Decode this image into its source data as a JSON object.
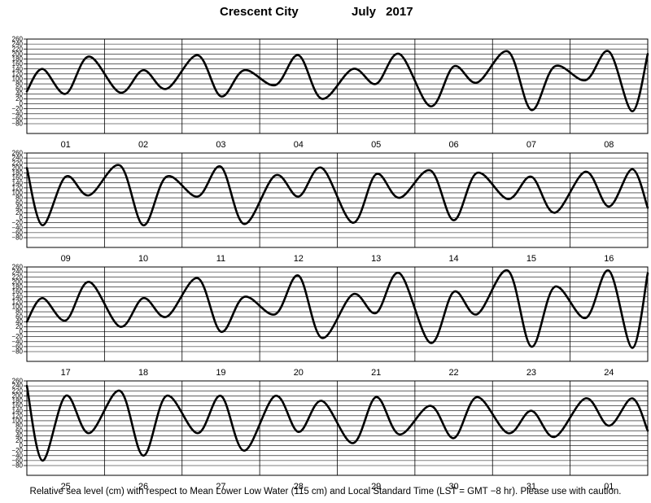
{
  "header": {
    "station": "Crescent City",
    "period": "July 2017"
  },
  "footer": {
    "note": "Relative sea level (cm) with respect to Mean Lower Low Water (115 cm) and Local Standard Time (LST = GMT −8 hr). Please use with caution."
  },
  "chart_data": {
    "type": "line",
    "title": "Crescent City July 2017",
    "ylabel": "Relative sea level (cm)",
    "ylim": [
      -80,
      260
    ],
    "yticks": [
      -80,
      -60,
      -40,
      -20,
      0,
      20,
      40,
      60,
      80,
      100,
      120,
      140,
      160,
      180,
      200,
      220,
      240,
      260
    ],
    "grid": true,
    "line_color": "#000000",
    "panels": [
      {
        "days": [
          "01",
          "02",
          "03",
          "04",
          "05",
          "06",
          "07",
          "08"
        ],
        "x": [
          0,
          0.2,
          0.5,
          0.8,
          1.2,
          1.5,
          1.8,
          2.2,
          2.5,
          2.8,
          3.2,
          3.5,
          3.8,
          4.2,
          4.5,
          4.8,
          5.2,
          5.5,
          5.8,
          6.2,
          6.5,
          6.8,
          7.2,
          7.5,
          7.8,
          8.0
        ],
        "y": [
          50,
          140,
          40,
          190,
          45,
          135,
          60,
          195,
          30,
          135,
          75,
          195,
          20,
          140,
          80,
          200,
          -10,
          150,
          85,
          210,
          -25,
          150,
          95,
          210,
          -30,
          200
        ]
      },
      {
        "days": [
          "09",
          "10",
          "11",
          "12",
          "13",
          "14",
          "15",
          "16"
        ],
        "x": [
          0,
          0.2,
          0.5,
          0.8,
          1.2,
          1.5,
          1.8,
          2.2,
          2.5,
          2.8,
          3.2,
          3.5,
          3.8,
          4.2,
          4.5,
          4.8,
          5.2,
          5.5,
          5.8,
          6.2,
          6.5,
          6.8,
          7.2,
          7.5,
          7.8,
          8.0
        ],
        "y": [
          200,
          -30,
          165,
          90,
          210,
          -30,
          165,
          85,
          205,
          -25,
          170,
          85,
          200,
          -20,
          175,
          80,
          190,
          -10,
          180,
          75,
          165,
          20,
          185,
          45,
          195,
          40
        ]
      },
      {
        "days": [
          "17",
          "18",
          "19",
          "20",
          "21",
          "22",
          "23",
          "24"
        ],
        "x": [
          0,
          0.2,
          0.5,
          0.8,
          1.2,
          1.5,
          1.8,
          2.2,
          2.5,
          2.8,
          3.2,
          3.5,
          3.8,
          4.2,
          4.5,
          4.8,
          5.2,
          5.5,
          5.8,
          6.2,
          6.5,
          6.8,
          7.2,
          7.5,
          7.8,
          8.0
        ],
        "y": [
          40,
          135,
          45,
          200,
          20,
          135,
          60,
          215,
          0,
          140,
          70,
          225,
          -25,
          150,
          75,
          235,
          -45,
          160,
          70,
          245,
          -60,
          180,
          55,
          245,
          -65,
          235
        ]
      },
      {
        "days": [
          "25",
          "26",
          "27",
          "28",
          "29",
          "30",
          "31",
          "01"
        ],
        "x": [
          0,
          0.2,
          0.5,
          0.8,
          1.2,
          1.5,
          1.8,
          2.2,
          2.5,
          2.8,
          3.2,
          3.5,
          3.8,
          4.2,
          4.5,
          4.8,
          5.2,
          5.5,
          5.8,
          6.2,
          6.5,
          6.8,
          7.2,
          7.5,
          7.8,
          8.0
        ],
        "y": [
          240,
          -60,
          200,
          50,
          220,
          -40,
          200,
          50,
          200,
          -20,
          200,
          55,
          180,
          10,
          195,
          45,
          160,
          30,
          195,
          50,
          140,
          35,
          190,
          80,
          190,
          60
        ]
      }
    ]
  }
}
